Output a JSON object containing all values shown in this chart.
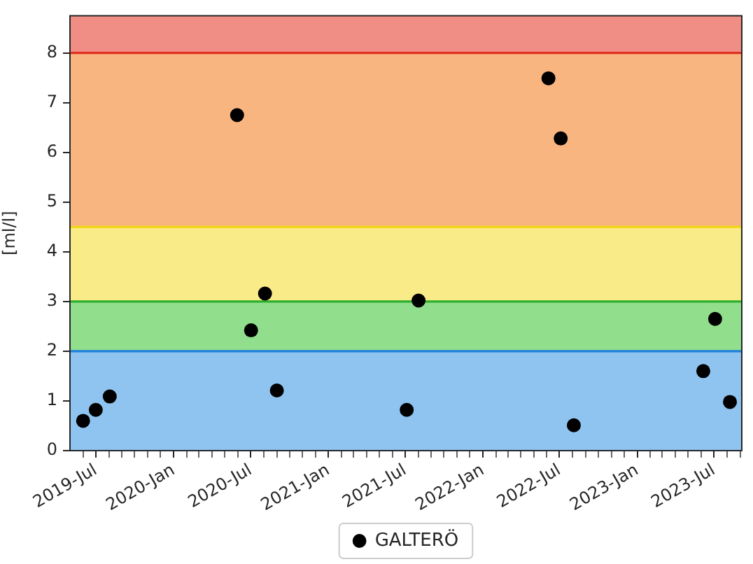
{
  "chart_data": {
    "type": "scatter",
    "ylabel": "[ml/l]",
    "x": [
      "2019-06-01",
      "2019-07-01",
      "2019-08-03",
      "2020-05-30",
      "2020-07-02",
      "2020-08-04",
      "2020-09-01",
      "2021-07-05",
      "2021-08-02",
      "2022-06-05",
      "2022-07-04",
      "2022-08-04",
      "2023-06-06",
      "2023-07-04",
      "2023-08-08"
    ],
    "series": [
      {
        "name": "GALTERÖ",
        "color": "#000000",
        "values": [
          0.6,
          0.82,
          1.09,
          6.75,
          2.42,
          3.16,
          1.21,
          0.82,
          3.02,
          7.49,
          6.28,
          0.51,
          1.6,
          2.65,
          0.98
        ]
      }
    ],
    "xlim": [
      "2019-05-01",
      "2023-09-05"
    ],
    "xticks": [
      {
        "value": "2019-06-01",
        "label": null
      },
      {
        "value": "2019-07-01",
        "label": "2019-Jul"
      },
      {
        "value": "2019-08-01",
        "label": null
      },
      {
        "value": "2019-09-01",
        "label": null
      },
      {
        "value": "2019-10-01",
        "label": null
      },
      {
        "value": "2019-11-01",
        "label": null
      },
      {
        "value": "2019-12-01",
        "label": null
      },
      {
        "value": "2020-01-01",
        "label": "2020-Jan"
      },
      {
        "value": "2020-02-01",
        "label": null
      },
      {
        "value": "2020-03-01",
        "label": null
      },
      {
        "value": "2020-04-01",
        "label": null
      },
      {
        "value": "2020-05-01",
        "label": null
      },
      {
        "value": "2020-06-01",
        "label": null
      },
      {
        "value": "2020-07-01",
        "label": "2020-Jul"
      },
      {
        "value": "2020-08-01",
        "label": null
      },
      {
        "value": "2020-09-01",
        "label": null
      },
      {
        "value": "2020-10-01",
        "label": null
      },
      {
        "value": "2020-11-01",
        "label": null
      },
      {
        "value": "2020-12-01",
        "label": null
      },
      {
        "value": "2021-01-01",
        "label": "2021-Jan"
      },
      {
        "value": "2021-02-01",
        "label": null
      },
      {
        "value": "2021-03-01",
        "label": null
      },
      {
        "value": "2021-04-01",
        "label": null
      },
      {
        "value": "2021-05-01",
        "label": null
      },
      {
        "value": "2021-06-01",
        "label": null
      },
      {
        "value": "2021-07-01",
        "label": "2021-Jul"
      },
      {
        "value": "2021-08-01",
        "label": null
      },
      {
        "value": "2021-09-01",
        "label": null
      },
      {
        "value": "2021-10-01",
        "label": null
      },
      {
        "value": "2021-11-01",
        "label": null
      },
      {
        "value": "2021-12-01",
        "label": null
      },
      {
        "value": "2022-01-01",
        "label": "2022-Jan"
      },
      {
        "value": "2022-02-01",
        "label": null
      },
      {
        "value": "2022-03-01",
        "label": null
      },
      {
        "value": "2022-04-01",
        "label": null
      },
      {
        "value": "2022-05-01",
        "label": null
      },
      {
        "value": "2022-06-01",
        "label": null
      },
      {
        "value": "2022-07-01",
        "label": "2022-Jul"
      },
      {
        "value": "2022-08-01",
        "label": null
      },
      {
        "value": "2022-09-01",
        "label": null
      },
      {
        "value": "2022-10-01",
        "label": null
      },
      {
        "value": "2022-11-01",
        "label": null
      },
      {
        "value": "2022-12-01",
        "label": null
      },
      {
        "value": "2023-01-01",
        "label": "2023-Jan"
      },
      {
        "value": "2023-02-01",
        "label": null
      },
      {
        "value": "2023-03-01",
        "label": null
      },
      {
        "value": "2023-04-01",
        "label": null
      },
      {
        "value": "2023-05-01",
        "label": null
      },
      {
        "value": "2023-06-01",
        "label": null
      },
      {
        "value": "2023-07-01",
        "label": "2023-Jul"
      },
      {
        "value": "2023-08-01",
        "label": null
      },
      {
        "value": "2023-09-01",
        "label": null
      }
    ],
    "ylim": [
      0,
      8.75
    ],
    "yticks": [
      0,
      1,
      2,
      3,
      4,
      5,
      6,
      7,
      8
    ],
    "bands": [
      {
        "axis": "y",
        "from": 0,
        "to": 2,
        "color": "#8fc4f0"
      },
      {
        "axis": "y",
        "from": 2,
        "to": 3,
        "color": "#91de8d"
      },
      {
        "axis": "y",
        "from": 3,
        "to": 4.5,
        "color": "#f9eb88"
      },
      {
        "axis": "y",
        "from": 4.5,
        "to": 8,
        "color": "#f9b580"
      },
      {
        "axis": "y",
        "from": 8,
        "to": 8.75,
        "color": "#f08e86"
      }
    ],
    "ref_lines": [
      {
        "axis": "y",
        "value": 2,
        "color": "#1e80dc"
      },
      {
        "axis": "y",
        "value": 3,
        "color": "#2cb02c"
      },
      {
        "axis": "y",
        "value": 4.5,
        "color": "#f2d818"
      },
      {
        "axis": "y",
        "value": 8,
        "color": "#e0301e"
      }
    ],
    "legend": "bottom",
    "marker": "circle"
  }
}
